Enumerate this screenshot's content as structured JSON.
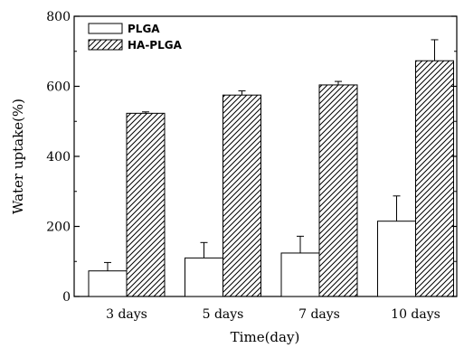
{
  "chart_data": {
    "type": "bar",
    "categories": [
      "3 days",
      "5 days",
      "7 days",
      "10 days"
    ],
    "series": [
      {
        "name": "PLGA",
        "values": [
          73,
          110,
          124,
          215
        ],
        "errors": [
          24,
          44,
          48,
          72
        ],
        "fill": "none"
      },
      {
        "name": "HA-PLGA",
        "values": [
          523,
          575,
          604,
          673
        ],
        "errors": [
          4,
          12,
          10,
          60
        ],
        "fill": "hatched"
      }
    ],
    "xlabel": "Time(day)",
    "ylabel": "Water uptake(%)",
    "ylim": [
      0,
      800
    ],
    "yticks": [
      "0",
      "200",
      "400",
      "600",
      "800"
    ],
    "legend_position": "top-left",
    "grid": false,
    "colors": {
      "line": "#000000",
      "background": "#ffffff"
    }
  }
}
